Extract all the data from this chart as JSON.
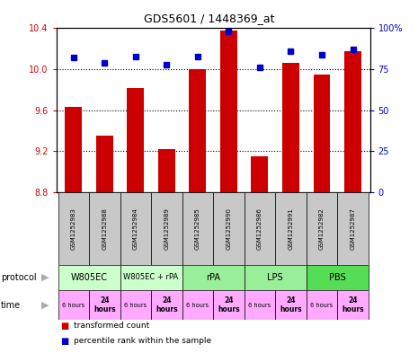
{
  "title": "GDS5601 / 1448369_at",
  "samples": [
    "GSM1252983",
    "GSM1252988",
    "GSM1252984",
    "GSM1252989",
    "GSM1252985",
    "GSM1252990",
    "GSM1252986",
    "GSM1252991",
    "GSM1252982",
    "GSM1252987"
  ],
  "transformed_counts": [
    9.63,
    9.35,
    9.82,
    9.22,
    10.0,
    10.38,
    9.15,
    10.06,
    9.95,
    10.18
  ],
  "percentile_ranks": [
    82,
    79,
    83,
    78,
    83,
    98,
    76,
    86,
    84,
    87
  ],
  "ymin": 8.8,
  "ymax": 10.4,
  "yticks": [
    8.8,
    9.2,
    9.6,
    10.0,
    10.4
  ],
  "right_yticks": [
    0,
    25,
    50,
    75,
    100
  ],
  "bar_color": "#cc0000",
  "dot_color": "#0000cc",
  "protocol_data": [
    {
      "label": "W805EC",
      "start": 0,
      "end": 2,
      "color": "#ccffcc"
    },
    {
      "label": "W805EC + rPA",
      "start": 2,
      "end": 4,
      "color": "#ccffcc"
    },
    {
      "label": "rPA",
      "start": 4,
      "end": 6,
      "color": "#99ee99"
    },
    {
      "label": "LPS",
      "start": 6,
      "end": 8,
      "color": "#99ee99"
    },
    {
      "label": "PBS",
      "start": 8,
      "end": 10,
      "color": "#55dd55"
    }
  ],
  "time_6h_color": "#ffaaff",
  "time_24h_color": "#ff88ff",
  "sample_box_color": "#c8c8c8",
  "legend_items": [
    {
      "label": "transformed count",
      "color": "#cc0000"
    },
    {
      "label": "percentile rank within the sample",
      "color": "#0000cc"
    }
  ],
  "background_color": "#ffffff",
  "axis_label_color_left": "#cc0000",
  "axis_label_color_right": "#0000cc",
  "arrow_color": "#aaaaaa"
}
